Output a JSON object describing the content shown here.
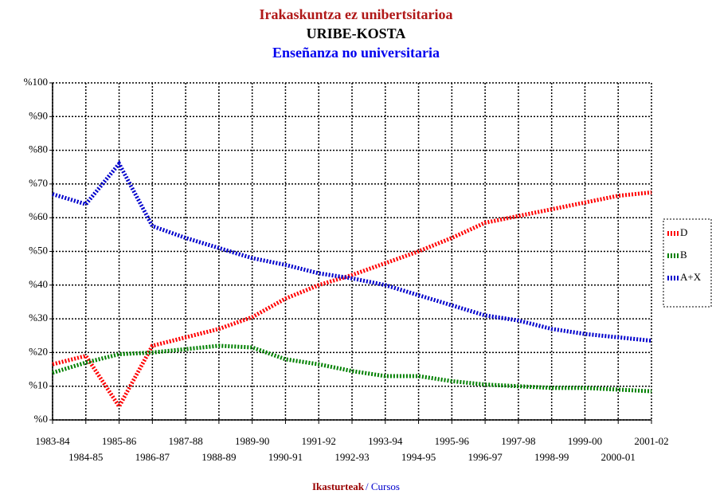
{
  "chart_data": {
    "type": "line",
    "title_lines": [
      {
        "text": "Irakaskuntza ez unibertsitarioa",
        "color": "#b01818"
      },
      {
        "text": "URIBE-KOSTA",
        "color": "#000000"
      },
      {
        "text": "Enseñanza no universitaria",
        "color": "#0000ee"
      }
    ],
    "xlabel_parts": [
      {
        "text": "Ikasturteak",
        "color": "#990000",
        "bold": true
      },
      {
        "text": "/ Cursos",
        "color": "#0000cc",
        "bold": false
      }
    ],
    "categories": [
      "1983-84",
      "1984-85",
      "1985-86",
      "1986-87",
      "1987-88",
      "1988-89",
      "1989-90",
      "1990-91",
      "1991-92",
      "1992-93",
      "1993-94",
      "1994-95",
      "1995-96",
      "1996-97",
      "1997-98",
      "1998-99",
      "1999-00",
      "2000-01",
      "2001-02"
    ],
    "series": [
      {
        "name": "D",
        "color": "#ff0000",
        "values": [
          16.5,
          19,
          4,
          22,
          24.5,
          27,
          30.5,
          36,
          40,
          43,
          46.5,
          50,
          54,
          58.5,
          60.5,
          62.5,
          64.5,
          66.5,
          67.5
        ]
      },
      {
        "name": "B",
        "color": "#008000",
        "values": [
          14,
          17,
          19.5,
          20,
          21,
          22,
          21.5,
          18,
          16.5,
          14.5,
          13,
          13,
          11.5,
          10.5,
          10,
          9.5,
          9.5,
          9,
          8.5
        ]
      },
      {
        "name": "A+X",
        "color": "#0000cc",
        "values": [
          67,
          64,
          76,
          57.5,
          54,
          51,
          48,
          46,
          43.5,
          42,
          40,
          37,
          34,
          31,
          29.5,
          27,
          25.5,
          24.5,
          23.5
        ]
      }
    ],
    "ylim": [
      0,
      100
    ],
    "yticks": [
      {
        "value": 0,
        "label": "%0"
      },
      {
        "value": 10,
        "label": "%10"
      },
      {
        "value": 20,
        "label": "%20"
      },
      {
        "value": 30,
        "label": "%30"
      },
      {
        "value": 40,
        "label": "%40"
      },
      {
        "value": 50,
        "label": "%50"
      },
      {
        "value": 60,
        "label": "%60"
      },
      {
        "value": 70,
        "label": "%70"
      },
      {
        "value": 80,
        "label": "%80"
      },
      {
        "value": 90,
        "label": "%90"
      },
      {
        "value": 100,
        "label": "%100"
      }
    ],
    "grid": true,
    "legend": "right"
  }
}
